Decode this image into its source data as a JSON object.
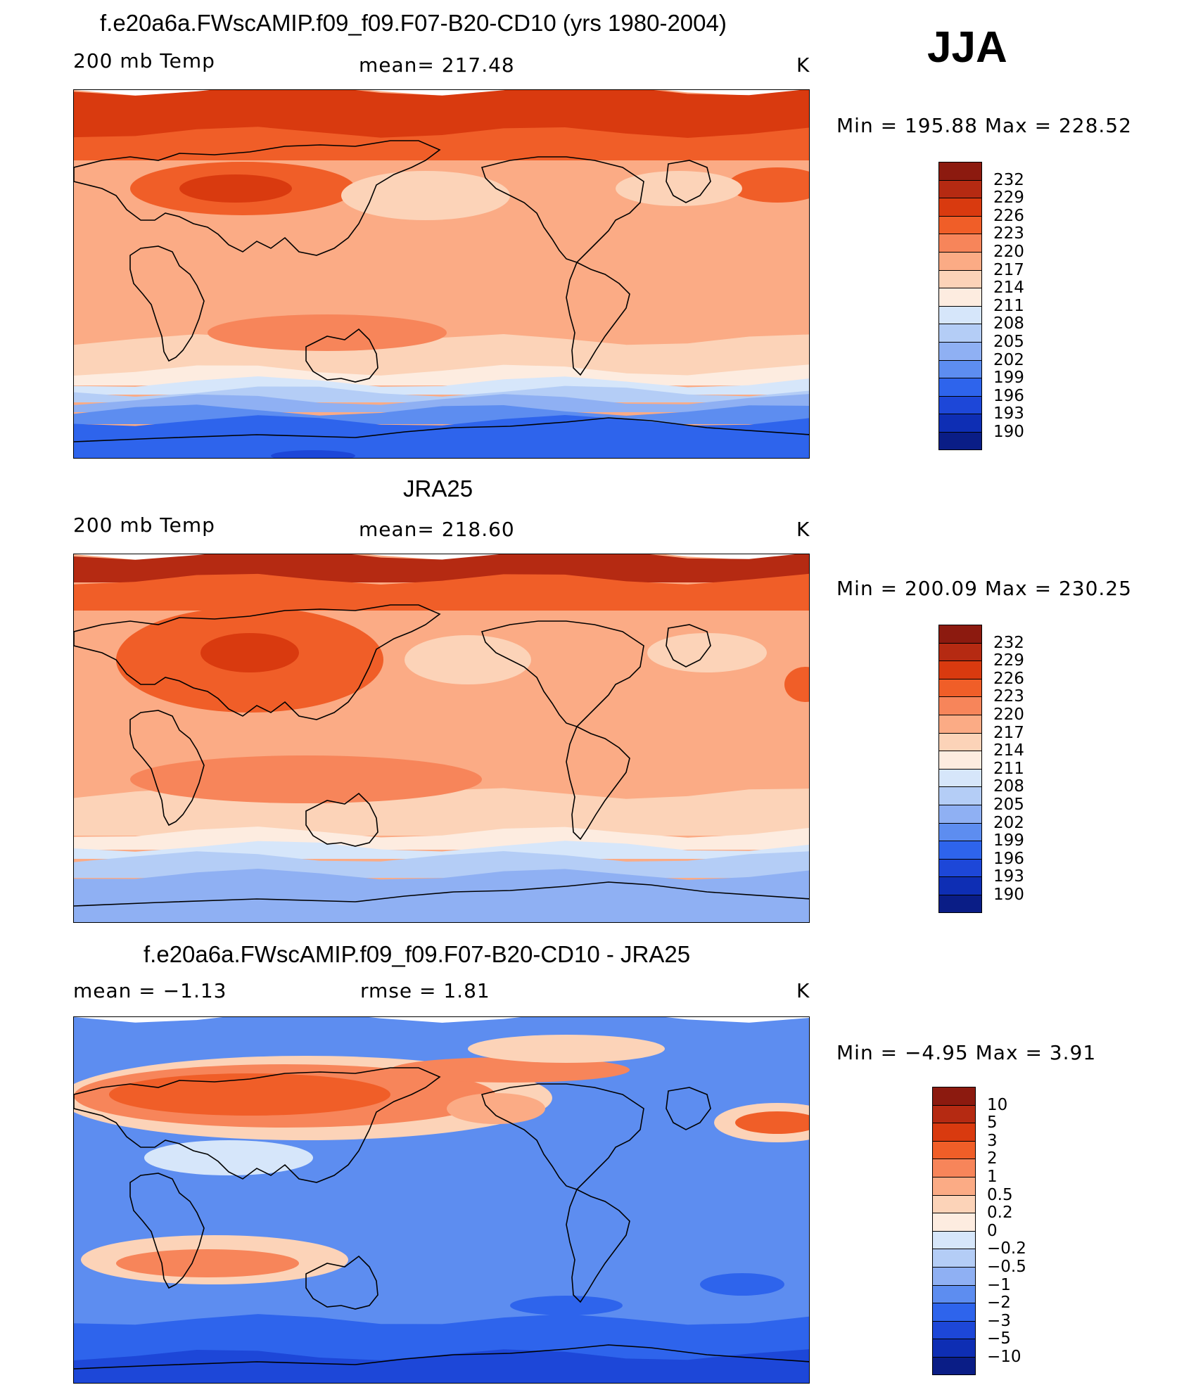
{
  "figure": {
    "season": "JJA"
  },
  "chart_data": [
    {
      "type": "heatmap",
      "title": "f.e20a6a.FWscAMIP.f09_f09.F07-B20-CD10 (yrs 1980-2004)",
      "left_label": "200 mb Temp",
      "center_label": "mean= 217.48",
      "units": "K",
      "min_max": "Min = 195.88 Max = 228.52",
      "min": 195.88,
      "max": 228.52,
      "mean": 217.48,
      "levels": [
        "232",
        "229",
        "226",
        "223",
        "220",
        "217",
        "214",
        "211",
        "208",
        "205",
        "202",
        "199",
        "196",
        "193",
        "190"
      ],
      "colors": [
        "#8c1a0f",
        "#b52a12",
        "#d93a0f",
        "#f05e28",
        "#f7855a",
        "#fbab85",
        "#fcd3b8",
        "#fdece0",
        "#d6e6fa",
        "#b4cdf6",
        "#8fb0f3",
        "#5d8df0",
        "#2e64ec",
        "#1d47d8",
        "#0e2eb4",
        "#0a1d86"
      ],
      "annotations": []
    },
    {
      "type": "heatmap",
      "title": "JRA25",
      "left_label": "200 mb Temp",
      "center_label": "mean= 218.60",
      "units": "K",
      "min_max": "Min = 200.09 Max = 230.25",
      "min": 200.09,
      "max": 230.25,
      "mean": 218.6,
      "levels": [
        "232",
        "229",
        "226",
        "223",
        "220",
        "217",
        "214",
        "211",
        "208",
        "205",
        "202",
        "199",
        "196",
        "193",
        "190"
      ],
      "colors": [
        "#8c1a0f",
        "#b52a12",
        "#d93a0f",
        "#f05e28",
        "#f7855a",
        "#fbab85",
        "#fcd3b8",
        "#fdece0",
        "#d6e6fa",
        "#b4cdf6",
        "#8fb0f3",
        "#5d8df0",
        "#2e64ec",
        "#1d47d8",
        "#0e2eb4",
        "#0a1d86"
      ]
    },
    {
      "type": "heatmap",
      "title": "f.e20a6a.FWscAMIP.f09_f09.F07-B20-CD10 - JRA25",
      "left_label": "mean =  −1.13",
      "center_label": "rmse =    1.81",
      "units": "K",
      "min_max": "Min =  −4.95 Max =    3.91",
      "min": -4.95,
      "max": 3.91,
      "mean": -1.13,
      "rmse": 1.81,
      "levels": [
        "10",
        "5",
        "3",
        "2",
        "1",
        "0.5",
        "0.2",
        "0",
        "−0.2",
        "−0.5",
        "−1",
        "−2",
        "−3",
        "−5",
        "−10"
      ],
      "colors": [
        "#8c1a0f",
        "#b52a12",
        "#d93a0f",
        "#f05e28",
        "#f7855a",
        "#fbab85",
        "#fcd3b8",
        "#fdece0",
        "#d6e6fa",
        "#b4cdf6",
        "#8fb0f3",
        "#5d8df0",
        "#2e64ec",
        "#1d47d8",
        "#0e2eb4",
        "#0a1d86"
      ]
    }
  ]
}
